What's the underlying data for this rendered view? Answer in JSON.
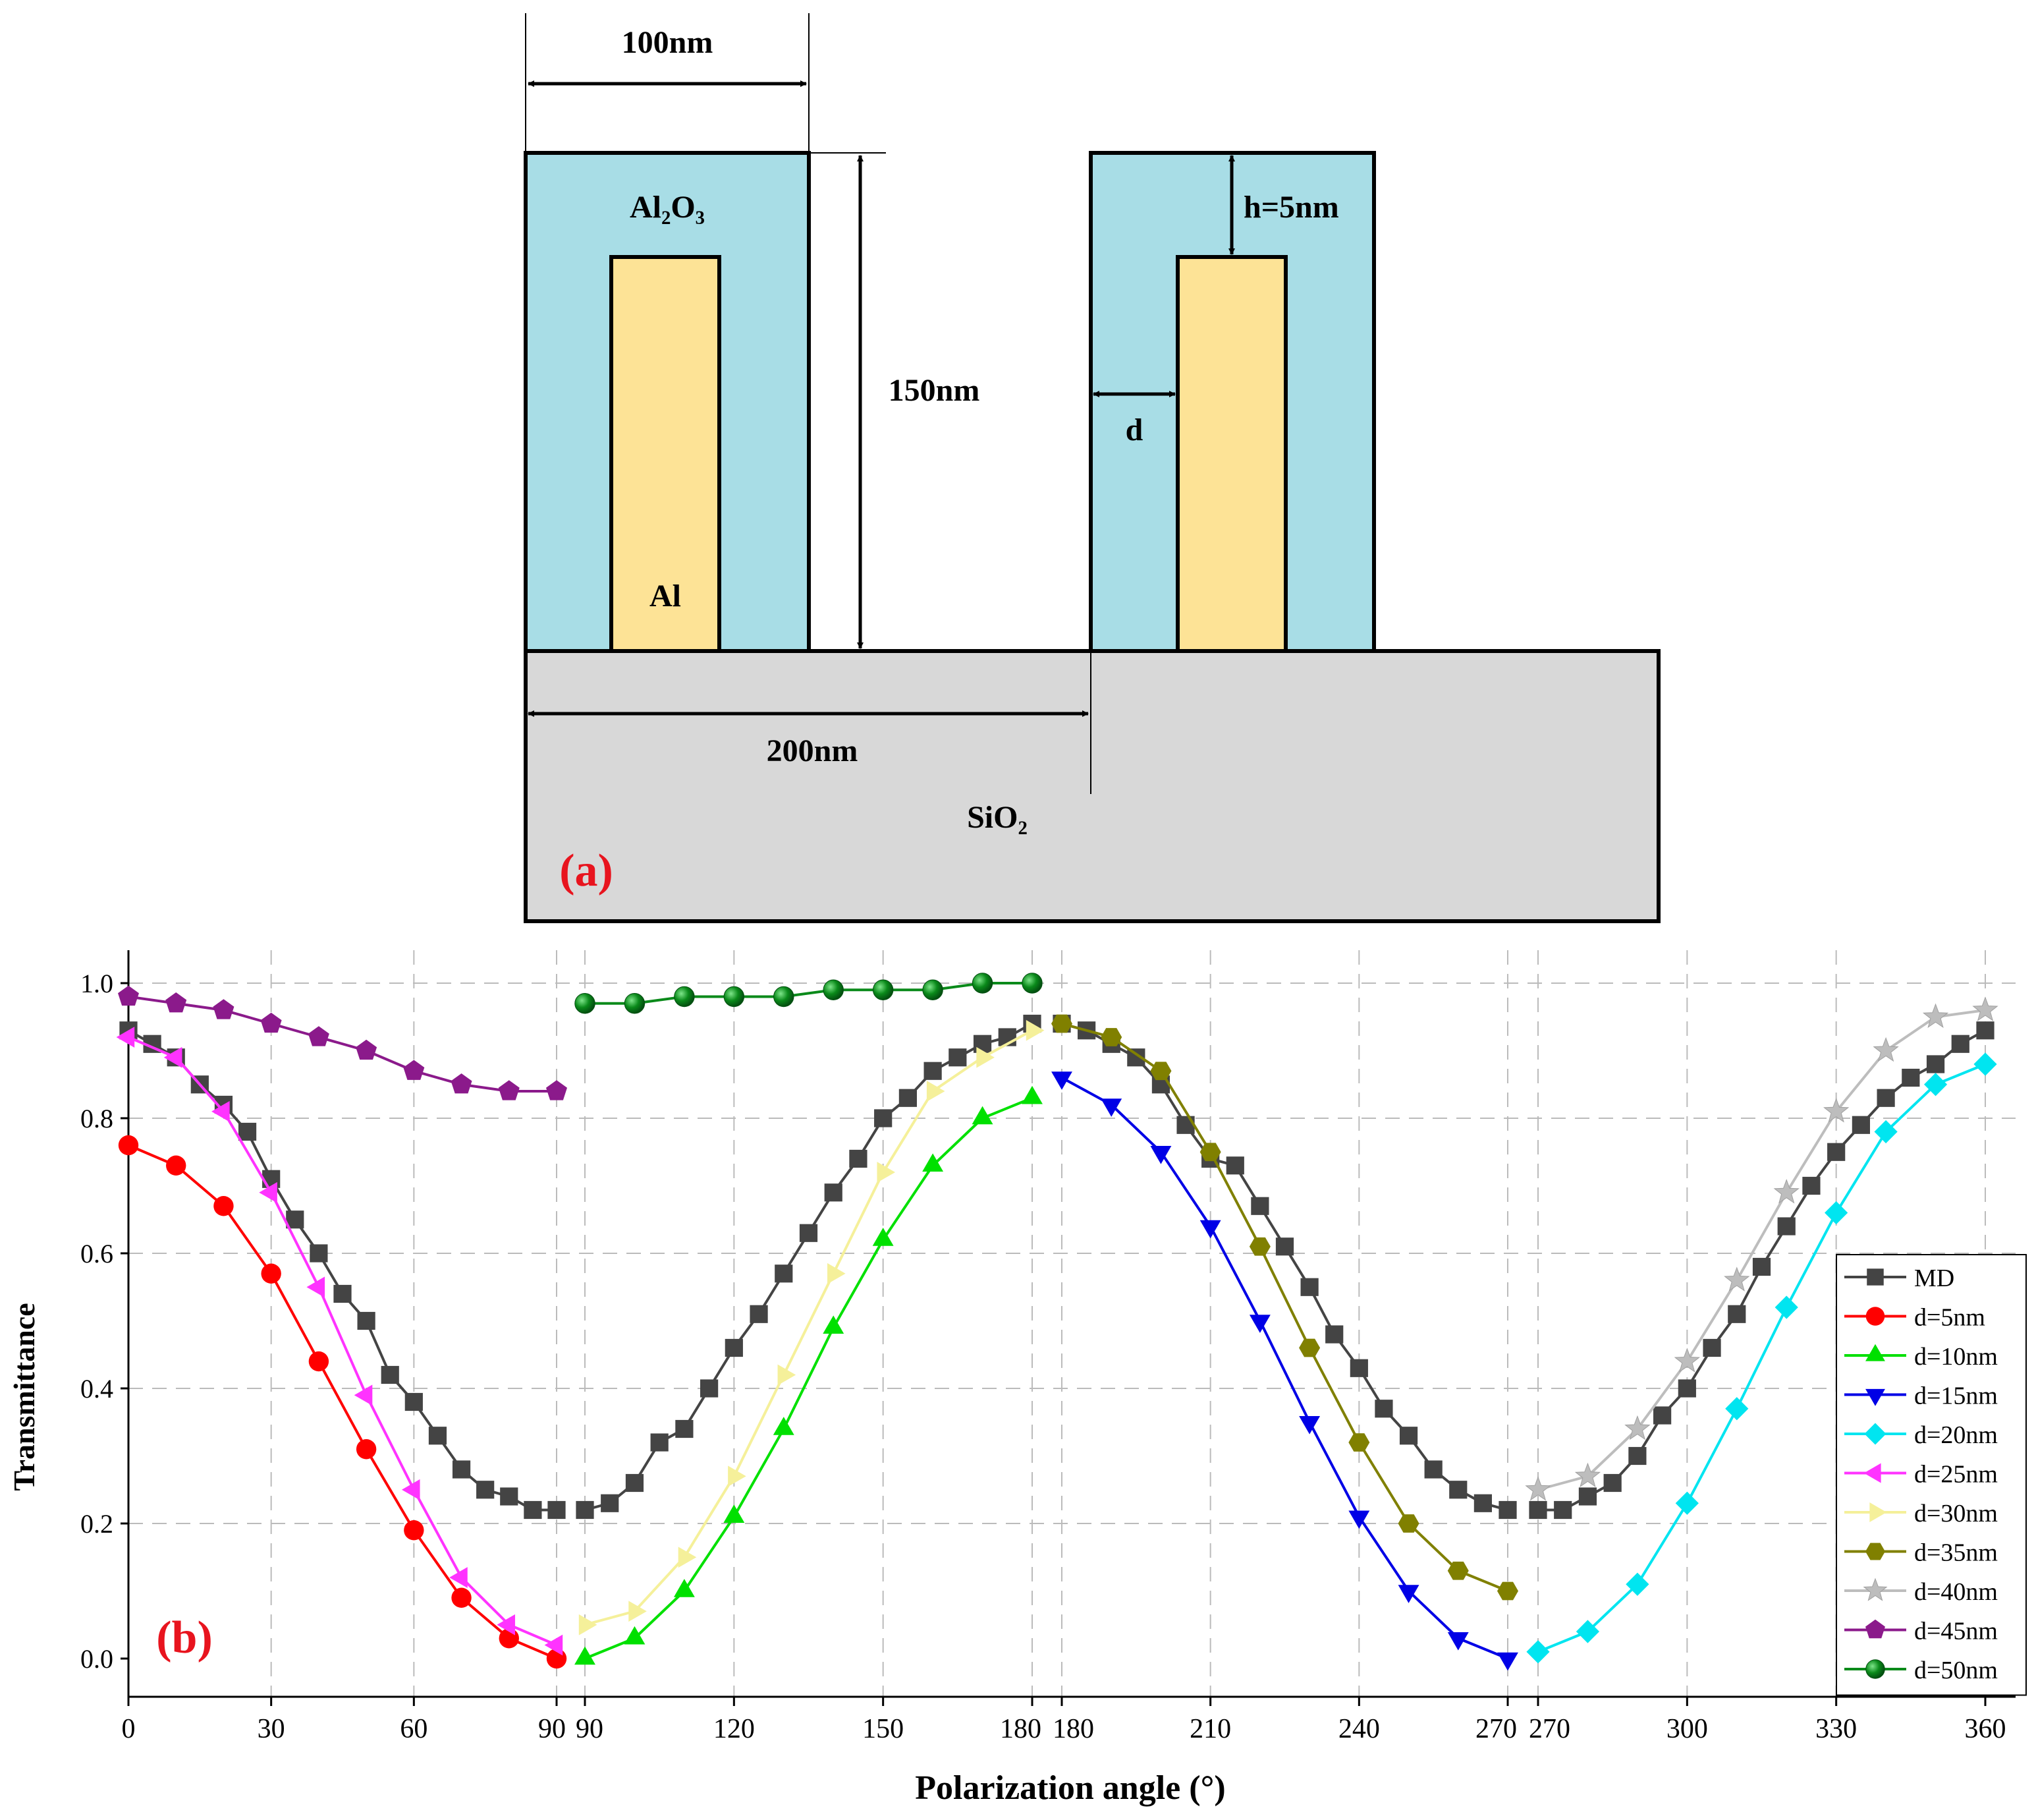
{
  "diagram": {
    "label_al2o3": "Al₂O₃",
    "label_al": "Al",
    "label_sio2": "SiO₂",
    "dim_width": "100nm",
    "dim_height": "150nm",
    "dim_period": "200nm",
    "dim_h": "h=5nm",
    "dim_d": "d",
    "panel_label": "(a)",
    "colors": {
      "shell": "#a8dde6",
      "core": "#fde396",
      "substrate": "#d8d8d8",
      "panel_label": "#e8141e"
    }
  },
  "chart_data": {
    "type": "line",
    "panel_label": "(b)",
    "xlabel": "Polarization angle (°)",
    "ylabel": "Transmittance",
    "ylim": [
      0,
      1.0
    ],
    "yticks": [
      "0.0",
      "0.2",
      "0.4",
      "0.6",
      "0.8",
      "1.0"
    ],
    "grid": true,
    "legend_position": "right",
    "segments": [
      {
        "xlim": [
          0,
          90
        ],
        "xticks": [
          "0",
          "30",
          "60",
          "90"
        ]
      },
      {
        "xlim": [
          90,
          180
        ],
        "xticks": [
          "90",
          "120",
          "150",
          "180"
        ]
      },
      {
        "xlim": [
          180,
          270
        ],
        "xticks": [
          "180",
          "210",
          "240",
          "270"
        ]
      },
      {
        "xlim": [
          270,
          360
        ],
        "xticks": [
          "270",
          "300",
          "330",
          "360"
        ]
      }
    ],
    "series": [
      {
        "name": "MD",
        "color": "#444444",
        "marker": "square",
        "x": [
          0,
          5,
          10,
          15,
          20,
          25,
          30,
          35,
          40,
          45,
          50,
          55,
          60,
          65,
          70,
          75,
          80,
          85,
          90,
          90,
          95,
          100,
          105,
          110,
          115,
          120,
          125,
          130,
          135,
          140,
          145,
          150,
          155,
          160,
          165,
          170,
          175,
          180,
          180,
          185,
          190,
          195,
          200,
          205,
          210,
          215,
          220,
          225,
          230,
          235,
          240,
          245,
          250,
          255,
          260,
          265,
          270,
          270,
          275,
          280,
          285,
          290,
          295,
          300,
          305,
          310,
          315,
          320,
          325,
          330,
          335,
          340,
          345,
          350,
          355,
          360
        ],
        "y": [
          0.93,
          0.91,
          0.89,
          0.85,
          0.82,
          0.78,
          0.71,
          0.65,
          0.6,
          0.54,
          0.5,
          0.42,
          0.38,
          0.33,
          0.28,
          0.25,
          0.24,
          0.22,
          0.22,
          0.22,
          0.23,
          0.26,
          0.32,
          0.34,
          0.4,
          0.46,
          0.51,
          0.57,
          0.63,
          0.69,
          0.74,
          0.8,
          0.83,
          0.87,
          0.89,
          0.91,
          0.92,
          0.94,
          0.94,
          0.93,
          0.91,
          0.89,
          0.85,
          0.79,
          0.74,
          0.73,
          0.67,
          0.61,
          0.55,
          0.48,
          0.43,
          0.37,
          0.33,
          0.28,
          0.25,
          0.23,
          0.22,
          0.22,
          0.22,
          0.24,
          0.26,
          0.3,
          0.36,
          0.4,
          0.46,
          0.51,
          0.58,
          0.64,
          0.7,
          0.75,
          0.79,
          0.83,
          0.86,
          0.88,
          0.91,
          0.93
        ]
      },
      {
        "name": "d=5nm",
        "color": "#ff0000",
        "marker": "circle",
        "x": [
          0,
          10,
          20,
          30,
          40,
          50,
          60,
          70,
          80,
          90
        ],
        "y": [
          0.76,
          0.73,
          0.67,
          0.57,
          0.44,
          0.31,
          0.19,
          0.09,
          0.03,
          0.0
        ]
      },
      {
        "name": "d=10nm",
        "color": "#00e000",
        "marker": "triangle-up",
        "x": [
          90,
          100,
          110,
          120,
          130,
          140,
          150,
          160,
          170,
          180
        ],
        "y": [
          0.0,
          0.03,
          0.1,
          0.21,
          0.34,
          0.49,
          0.62,
          0.73,
          0.8,
          0.83
        ]
      },
      {
        "name": "d=15nm",
        "color": "#0000e6",
        "marker": "triangle-down",
        "x": [
          180,
          190,
          200,
          210,
          220,
          230,
          240,
          250,
          260,
          270
        ],
        "y": [
          0.86,
          0.82,
          0.75,
          0.64,
          0.5,
          0.35,
          0.21,
          0.1,
          0.03,
          0.0
        ]
      },
      {
        "name": "d=20nm",
        "color": "#00e5f0",
        "marker": "diamond",
        "x": [
          270,
          280,
          290,
          300,
          310,
          320,
          330,
          340,
          350,
          360
        ],
        "y": [
          0.01,
          0.04,
          0.11,
          0.23,
          0.37,
          0.52,
          0.66,
          0.78,
          0.85,
          0.88
        ]
      },
      {
        "name": "d=25nm",
        "color": "#ff33ff",
        "marker": "triangle-left",
        "x": [
          0,
          10,
          20,
          30,
          40,
          50,
          60,
          70,
          80,
          90
        ],
        "y": [
          0.92,
          0.89,
          0.81,
          0.69,
          0.55,
          0.39,
          0.25,
          0.12,
          0.05,
          0.02
        ]
      },
      {
        "name": "d=30nm",
        "color": "#f5f09a",
        "marker": "triangle-right",
        "x": [
          90,
          100,
          110,
          120,
          130,
          140,
          150,
          160,
          170,
          180
        ],
        "y": [
          0.05,
          0.07,
          0.15,
          0.27,
          0.42,
          0.57,
          0.72,
          0.84,
          0.89,
          0.93
        ]
      },
      {
        "name": "d=35nm",
        "color": "#808000",
        "marker": "hexagon",
        "x": [
          180,
          190,
          200,
          210,
          220,
          230,
          240,
          250,
          260,
          270
        ],
        "y": [
          0.94,
          0.92,
          0.87,
          0.75,
          0.61,
          0.46,
          0.32,
          0.2,
          0.13,
          0.1
        ]
      },
      {
        "name": "d=40nm",
        "color": "#bdbdbd",
        "marker": "star",
        "x": [
          270,
          280,
          290,
          300,
          310,
          320,
          330,
          340,
          350,
          360
        ],
        "y": [
          0.25,
          0.27,
          0.34,
          0.44,
          0.56,
          0.69,
          0.81,
          0.9,
          0.95,
          0.96
        ]
      },
      {
        "name": "d=45nm",
        "color": "#8b1a8b",
        "marker": "pentagon",
        "x": [
          0,
          10,
          20,
          30,
          40,
          50,
          60,
          70,
          80,
          90
        ],
        "y": [
          0.98,
          0.97,
          0.96,
          0.94,
          0.92,
          0.9,
          0.87,
          0.85,
          0.84,
          0.84
        ]
      },
      {
        "name": "d=50nm",
        "color": "#0a8a1a",
        "marker": "sphere",
        "x": [
          90,
          100,
          110,
          120,
          130,
          140,
          150,
          160,
          170,
          180
        ],
        "y": [
          0.97,
          0.97,
          0.98,
          0.98,
          0.98,
          0.99,
          0.99,
          0.99,
          1.0,
          1.0
        ]
      }
    ]
  }
}
